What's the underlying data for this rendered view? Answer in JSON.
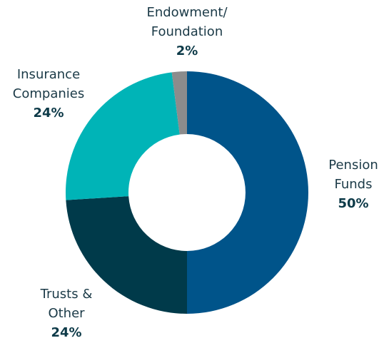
{
  "chart_data": {
    "type": "donut",
    "categories": [
      "Pension\nFunds",
      "Trusts &\nOther",
      "Insurance\nCompanies",
      "Endowment/\nFoundation"
    ],
    "values": [
      50,
      24,
      24,
      2
    ],
    "value_labels": [
      "50%",
      "24%",
      "24%",
      "2%"
    ],
    "colors": [
      "#00548a",
      "#003a4a",
      "#00b4b7",
      "#8c8c8c"
    ]
  }
}
